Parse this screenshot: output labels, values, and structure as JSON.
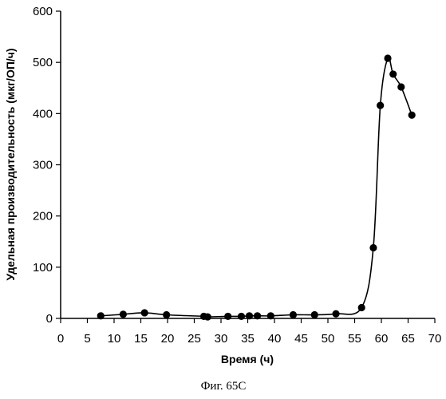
{
  "chart_data": {
    "type": "scatter",
    "xlabel": "Время (ч)",
    "ylabel": "Удельная производительность (мкг/ОП/ч)",
    "xlim": [
      0,
      70
    ],
    "ylim": [
      0,
      600
    ],
    "xticks": [
      0,
      5,
      10,
      15,
      20,
      25,
      30,
      35,
      40,
      45,
      50,
      55,
      60,
      65,
      70
    ],
    "yticks": [
      0,
      100,
      200,
      300,
      400,
      500,
      600
    ],
    "grid": false,
    "legend": "none",
    "series": [
      {
        "points": [
          [
            7.5,
            5
          ],
          [
            11.7,
            8
          ],
          [
            15.7,
            11
          ],
          [
            19.8,
            7
          ],
          [
            26.8,
            4
          ],
          [
            27.5,
            3
          ],
          [
            31.3,
            4
          ],
          [
            33.8,
            4
          ],
          [
            35.3,
            5
          ],
          [
            36.8,
            5
          ],
          [
            39.3,
            5
          ],
          [
            43.5,
            7
          ],
          [
            47.5,
            7
          ],
          [
            51.5,
            9
          ],
          [
            56.3,
            21
          ],
          [
            58.5,
            138
          ],
          [
            59.8,
            416
          ],
          [
            61.2,
            508
          ],
          [
            62.2,
            477
          ],
          [
            63.7,
            452
          ],
          [
            65.7,
            397
          ]
        ],
        "color": "#000000",
        "marker": "filled-circle",
        "line": "smooth"
      }
    ],
    "caption": "Фиг. 65C"
  }
}
